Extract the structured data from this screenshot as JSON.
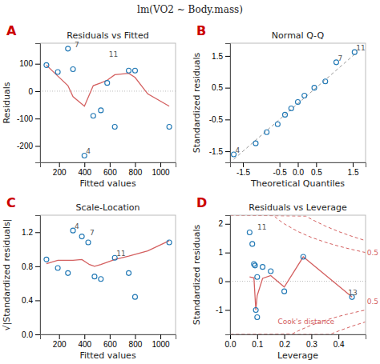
{
  "title": "lm(VO2 ~ Body.mass)",
  "chart_data": [
    {
      "type": "scatter",
      "title": "Residuals vs Fitted",
      "panel_label": {
        "text": "A",
        "color": "#cc0000"
      },
      "xlabel": "Fitted values",
      "ylabel": "Residuals",
      "xlim": [
        50,
        1120
      ],
      "ylim": [
        -260,
        175
      ],
      "xticks": [
        200,
        400,
        600,
        800,
        1000
      ],
      "yticks": [
        -200,
        -100,
        0,
        100
      ],
      "grid": false,
      "series": [
        {
          "type": "scatter",
          "marker": "circle",
          "x": [
            100,
            190,
            270,
            310,
            400,
            470,
            530,
            580,
            640,
            750,
            800,
            1070
          ],
          "values": [
            95,
            70,
            155,
            80,
            -235,
            -90,
            -70,
            30,
            -130,
            75,
            75,
            -130
          ]
        },
        {
          "type": "line",
          "color": "#d46060",
          "line_style": "solid",
          "x": [
            100,
            190,
            270,
            310,
            400,
            470,
            530,
            580,
            640,
            750,
            800,
            900,
            1070
          ],
          "values": [
            95,
            55,
            20,
            -20,
            -55,
            20,
            30,
            40,
            60,
            65,
            50,
            -10,
            -55
          ]
        }
      ],
      "reference_lines": [
        {
          "axis": "y",
          "value": 0,
          "line_style": "dotted"
        }
      ],
      "annotations": [
        {
          "text": "7",
          "x": 310,
          "y": 155
        },
        {
          "text": "11",
          "x": 580,
          "y": 120
        },
        {
          "text": "4",
          "x": 400,
          "y": -235
        }
      ]
    },
    {
      "type": "scatter",
      "title": "Normal Q-Q",
      "panel_label": {
        "text": "B",
        "color": "#cc0000"
      },
      "xlabel": "Theoretical Quantiles",
      "ylabel": "Standardized residuals",
      "xlim": [
        -1.85,
        1.85
      ],
      "ylim": [
        -1.85,
        1.9
      ],
      "xticks": [
        -1.5,
        -0.5,
        {
          "value": 0,
          "label": "0.0"
        },
        0.5,
        1.5
      ],
      "yticks": [
        -1.5,
        -0.5,
        0.5,
        1.5
      ],
      "grid": false,
      "series": [
        {
          "type": "line",
          "line_style": "dashed",
          "x": [
            -1.75,
            1.62
          ],
          "values": [
            -1.75,
            1.62
          ]
        },
        {
          "type": "scatter",
          "marker": "circle",
          "x": [
            -1.75,
            -1.15,
            -0.85,
            -0.55,
            -0.35,
            -0.18,
            0.0,
            0.18,
            0.45,
            0.75,
            1.05,
            1.55
          ],
          "values": [
            -1.6,
            -1.25,
            -0.9,
            -0.65,
            -0.35,
            -0.15,
            0.05,
            0.25,
            0.5,
            0.7,
            1.3,
            1.62
          ]
        }
      ],
      "reference_lines": [],
      "annotations": [
        {
          "text": "4",
          "x": -1.75,
          "y": -1.6
        },
        {
          "text": "7",
          "x": 1.05,
          "y": 1.3
        },
        {
          "text": "11",
          "x": 1.55,
          "y": 1.62
        }
      ]
    },
    {
      "type": "scatter",
      "title": "Scale-Location",
      "panel_label": {
        "text": "C",
        "color": "#cc0000"
      },
      "xlabel": "Fitted values",
      "ylabel": "√|Standardized residuals|",
      "xlim": [
        50,
        1120
      ],
      "ylim": [
        0.0,
        1.4
      ],
      "xticks": [
        200,
        400,
        600,
        800,
        1000
      ],
      "yticks": [
        {
          "value": 0,
          "label": "0.0"
        },
        0.4,
        0.8,
        1.2
      ],
      "grid": false,
      "series": [
        {
          "type": "scatter",
          "marker": "circle",
          "x": [
            100,
            190,
            270,
            310,
            380,
            430,
            480,
            530,
            640,
            750,
            800,
            1070
          ],
          "values": [
            0.88,
            0.78,
            0.72,
            1.22,
            1.15,
            1.08,
            0.68,
            0.65,
            0.9,
            0.72,
            0.44,
            1.08
          ]
        },
        {
          "type": "line",
          "color": "#d46060",
          "line_style": "solid",
          "x": [
            100,
            190,
            310,
            380,
            440,
            480,
            530,
            640,
            750,
            900,
            1070
          ],
          "values": [
            0.83,
            0.87,
            0.87,
            0.88,
            0.82,
            0.8,
            0.82,
            0.88,
            0.92,
            0.98,
            1.1
          ]
        }
      ],
      "reference_lines": [],
      "annotations": [
        {
          "text": "4",
          "x": 310,
          "y": 1.22
        },
        {
          "text": "7",
          "x": 430,
          "y": 1.15
        },
        {
          "text": "11",
          "x": 640,
          "y": 0.9
        }
      ]
    },
    {
      "type": "scatter",
      "title": "Residuals vs Leverage",
      "panel_label": {
        "text": "D",
        "color": "#cc0000"
      },
      "xlabel": "Leverage",
      "ylabel": "Standardized residuals",
      "xlim": [
        0.0,
        0.5
      ],
      "ylim": [
        -1.85,
        2.3
      ],
      "xticks": [
        {
          "value": 0,
          "label": "0.0"
        },
        0.1,
        0.2,
        0.3,
        0.4
      ],
      "yticks": [
        -1,
        0,
        1,
        2
      ],
      "grid": false,
      "series": [
        {
          "type": "scatter",
          "marker": "circle",
          "x": [
            0.072,
            0.082,
            0.088,
            0.092,
            0.095,
            0.1,
            0.1,
            0.12,
            0.15,
            0.2,
            0.27,
            0.45
          ],
          "values": [
            1.7,
            1.3,
            0.6,
            0.55,
            -1.0,
            -1.25,
            0.15,
            0.5,
            0.35,
            -0.35,
            0.85,
            -0.55
          ]
        },
        {
          "type": "line",
          "color": "#d46060",
          "line_style": "solid",
          "x": [
            0.072,
            0.088,
            0.095,
            0.1,
            0.12,
            0.15,
            0.2,
            0.27,
            0.45
          ],
          "values": [
            0.15,
            0.12,
            -1.0,
            -0.5,
            0.1,
            0.2,
            -0.2,
            0.85,
            -0.55
          ]
        },
        {
          "type": "line",
          "color": "#d46060",
          "line_style": "dashed",
          "x": [
            0.001,
            0.16,
            0.18,
            0.2,
            0.25,
            0.3,
            0.35,
            0.4,
            0.45,
            0.499
          ],
          "values": [
            2.3,
            2.2913,
            2.1344,
            2.0,
            1.7321,
            1.5275,
            1.3628,
            1.2247,
            1.1055,
            1.002
          ]
        },
        {
          "type": "line",
          "color": "#d46060",
          "line_style": "dashed",
          "x": [
            0.001,
            0.28,
            0.3,
            0.35,
            0.4,
            0.45,
            0.499
          ],
          "values": [
            2.3,
            2.2678,
            2.1602,
            1.9272,
            1.7321,
            1.5635,
            1.4171
          ]
        },
        {
          "type": "line",
          "color": "#d46060",
          "line_style": "dashed",
          "x": [
            0.001,
            0.23,
            0.25,
            0.3,
            0.35,
            0.4,
            0.45,
            0.499
          ],
          "values": [
            -1.85,
            -1.8297,
            -1.7321,
            -1.5275,
            -1.3628,
            -1.2247,
            -1.1055,
            -1.002
          ]
        },
        {
          "type": "line",
          "color": "#d46060",
          "line_style": "dashed",
          "x": [
            0.001,
            0.37,
            0.4,
            0.45,
            0.499
          ],
          "values": [
            -1.85,
            -1.8454,
            -1.7321,
            -1.5635,
            -1.4171
          ]
        }
      ],
      "reference_lines": [
        {
          "axis": "y",
          "value": 0,
          "line_style": "dotted"
        },
        {
          "axis": "x",
          "value": 0,
          "line_style": "dotted"
        }
      ],
      "annotations": [
        {
          "text": "11",
          "x": 0.095,
          "y": 1.75
        },
        {
          "text": "13",
          "x": 0.43,
          "y": -0.55
        },
        {
          "text": "Cook's distance",
          "x": 0.17,
          "y": -1.55,
          "color": "#d46060"
        },
        {
          "text": "0.5",
          "x": 0.499,
          "y": 0.85,
          "color": "#d46060"
        },
        {
          "text": "0.5",
          "x": 0.499,
          "y": -0.85,
          "color": "#d46060"
        }
      ]
    }
  ]
}
